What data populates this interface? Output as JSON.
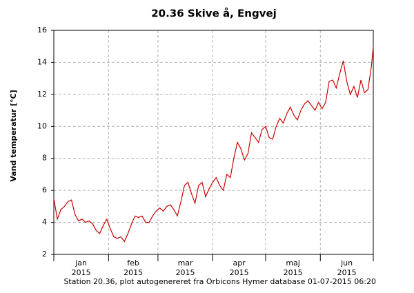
{
  "chart_data": {
    "type": "line",
    "title": "20.36 Skive å, Engvej",
    "ylabel": "Vand temperatur [°C]",
    "footer": "Station 20.36, plot autogenereret fra Orbicons Hymer database 01-07-2015 06:20",
    "x": [
      0,
      2,
      4,
      6,
      8,
      10,
      12,
      14,
      16,
      18,
      20,
      22,
      24,
      26,
      28,
      30,
      32,
      34,
      36,
      38,
      40,
      42,
      44,
      46,
      48,
      50,
      52,
      54,
      56,
      58,
      60,
      62,
      64,
      66,
      68,
      70,
      72,
      74,
      76,
      78,
      80,
      82,
      84,
      86,
      88,
      90,
      92,
      94,
      96,
      98,
      100,
      102,
      104,
      106,
      108,
      110,
      112,
      114,
      116,
      118,
      120,
      122,
      124,
      126,
      128,
      130,
      132,
      134,
      136,
      138,
      140,
      142,
      144,
      146,
      148,
      150,
      152,
      154,
      156,
      158,
      160,
      162,
      164,
      166,
      168,
      170,
      172,
      174,
      176,
      178,
      180,
      181
    ],
    "series": [
      {
        "color": "#cc0000",
        "values": [
          5.5,
          4.2,
          4.8,
          5.0,
          5.3,
          5.4,
          4.5,
          4.1,
          4.2,
          4.0,
          4.1,
          3.9,
          3.5,
          3.3,
          3.8,
          4.2,
          3.6,
          3.1,
          3.0,
          3.1,
          2.8,
          3.3,
          3.9,
          4.4,
          4.3,
          4.4,
          4.0,
          4.0,
          4.4,
          4.7,
          4.9,
          4.7,
          5.0,
          5.1,
          4.8,
          4.4,
          5.3,
          6.3,
          6.5,
          5.8,
          5.2,
          6.3,
          6.5,
          5.6,
          6.1,
          6.5,
          6.8,
          6.3,
          6.0,
          7.0,
          6.8,
          8.0,
          9.0,
          8.6,
          7.9,
          8.3,
          9.6,
          9.3,
          9.0,
          9.8,
          10.0,
          9.3,
          9.2,
          10.0,
          10.5,
          10.2,
          10.8,
          11.2,
          10.7,
          10.4,
          11.0,
          11.4,
          11.6,
          11.3,
          11.0,
          11.5,
          11.1,
          11.5,
          12.8,
          12.9,
          12.4,
          13.3,
          14.1,
          12.8,
          12.0,
          12.5,
          11.8,
          12.9,
          12.1,
          12.3,
          13.8,
          15.0
        ]
      }
    ],
    "xlim": [
      0,
      181
    ],
    "xticks": [
      0,
      31,
      59,
      90,
      120,
      151,
      181
    ],
    "month_labels": [
      {
        "value": 15.5,
        "label": "jan",
        "sublabel": "2015"
      },
      {
        "value": 45,
        "label": "feb",
        "sublabel": "2015"
      },
      {
        "value": 74.5,
        "label": "mar",
        "sublabel": "2015"
      },
      {
        "value": 105,
        "label": "apr",
        "sublabel": "2015"
      },
      {
        "value": 135.5,
        "label": "maj",
        "sublabel": "2015"
      },
      {
        "value": 166,
        "label": "jun",
        "sublabel": "2015"
      }
    ],
    "ylim": [
      2,
      16
    ],
    "yticks": [
      2,
      4,
      6,
      8,
      10,
      12,
      14,
      16
    ],
    "grid": true
  }
}
